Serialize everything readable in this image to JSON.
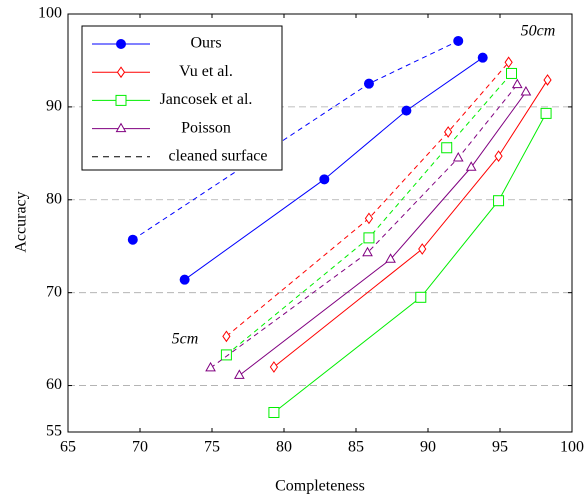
{
  "chart_data": {
    "type": "line",
    "x_label": "Completeness",
    "y_label": "Accuracy",
    "xlim": [
      65,
      100
    ],
    "xticks": [
      65,
      70,
      75,
      80,
      85,
      90,
      95,
      100
    ],
    "ylim": [
      55,
      100
    ],
    "yticks": [
      55,
      60,
      70,
      80,
      90,
      100
    ],
    "grid": true,
    "annotations": [
      "50cm",
      "5cm"
    ],
    "dashed_legend": "cleaned surface",
    "series": [
      {
        "name": "Ours",
        "color": "#0000ff",
        "marker": "circle",
        "solid": {
          "x": [
            73.1,
            82.8,
            88.5,
            93.8
          ],
          "y": [
            71.4,
            82.2,
            89.6,
            95.3
          ]
        },
        "dashed": {
          "x": [
            69.5,
            85.9,
            92.1
          ],
          "y": [
            75.7,
            92.5,
            97.1
          ]
        }
      },
      {
        "name": "Vu et al.",
        "color": "#ff0000",
        "marker": "diamond",
        "solid": {
          "x": [
            79.3,
            89.6,
            94.9,
            98.3
          ],
          "y": [
            62.0,
            74.7,
            84.7,
            92.9
          ]
        },
        "dashed": {
          "x": [
            76.0,
            85.9,
            91.4,
            95.6
          ],
          "y": [
            65.3,
            78.0,
            87.3,
            94.8
          ]
        }
      },
      {
        "name": "Jancosek et al.",
        "color": "#00ee00",
        "marker": "square",
        "solid": {
          "x": [
            79.3,
            89.5,
            94.9,
            98.2
          ],
          "y": [
            57.1,
            69.5,
            79.9,
            89.3
          ]
        },
        "dashed": {
          "x": [
            76.0,
            85.9,
            91.3,
            95.8
          ],
          "y": [
            63.3,
            75.9,
            85.6,
            93.6
          ]
        }
      },
      {
        "name": "Poisson",
        "color": "#800080",
        "marker": "triangle",
        "solid": {
          "x": [
            76.9,
            87.4,
            93.0,
            96.8
          ],
          "y": [
            61.1,
            73.6,
            83.5,
            91.6
          ]
        },
        "dashed": {
          "x": [
            74.9,
            85.8,
            92.1,
            96.2
          ],
          "y": [
            61.9,
            74.3,
            84.5,
            92.4
          ]
        }
      }
    ]
  }
}
